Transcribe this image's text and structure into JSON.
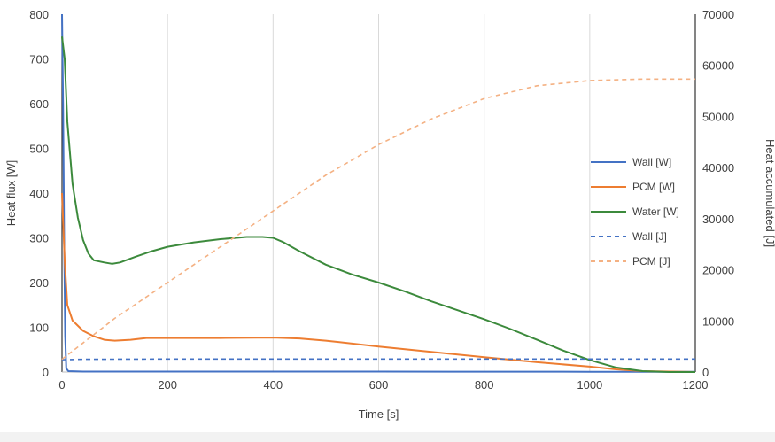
{
  "chart_data": {
    "type": "line",
    "title": "",
    "xlabel": "Time [s]",
    "ylabel": "Heat flux [W]",
    "y2label": "Heat accumulated [J]",
    "xlim": [
      0,
      1200
    ],
    "ylim": [
      0,
      800
    ],
    "y2lim": [
      0,
      70000
    ],
    "x_ticks": [
      "0",
      "200",
      "400",
      "600",
      "800",
      "1000",
      "1200"
    ],
    "y_ticks": [
      "0",
      "100",
      "200",
      "300",
      "400",
      "500",
      "600",
      "700",
      "800"
    ],
    "y2_ticks": [
      "0",
      "10000",
      "20000",
      "30000",
      "40000",
      "50000",
      "60000",
      "70000"
    ],
    "grid": "vertical",
    "legend_position": "right",
    "series": [
      {
        "name": "Wall [W]",
        "axis": "left",
        "style": "solid",
        "color": "#4472C4",
        "points": [
          [
            0,
            800
          ],
          [
            2,
            600
          ],
          [
            4,
            300
          ],
          [
            6,
            80
          ],
          [
            8,
            8
          ],
          [
            12,
            2
          ],
          [
            40,
            1
          ],
          [
            200,
            1
          ],
          [
            600,
            1
          ],
          [
            1000,
            0.5
          ],
          [
            1200,
            0.5
          ]
        ]
      },
      {
        "name": "PCM [W]",
        "axis": "left",
        "style": "solid",
        "color": "#ED7D31",
        "points": [
          [
            0,
            400
          ],
          [
            5,
            250
          ],
          [
            10,
            150
          ],
          [
            20,
            115
          ],
          [
            40,
            92
          ],
          [
            60,
            80
          ],
          [
            80,
            72
          ],
          [
            100,
            70
          ],
          [
            130,
            72
          ],
          [
            160,
            76
          ],
          [
            200,
            76
          ],
          [
            300,
            76
          ],
          [
            400,
            77
          ],
          [
            450,
            75
          ],
          [
            500,
            70
          ],
          [
            600,
            57
          ],
          [
            700,
            45
          ],
          [
            800,
            33
          ],
          [
            900,
            22
          ],
          [
            1000,
            12
          ],
          [
            1050,
            6
          ],
          [
            1100,
            2
          ],
          [
            1150,
            1
          ],
          [
            1200,
            0
          ]
        ]
      },
      {
        "name": "Water [W]",
        "axis": "left",
        "style": "solid",
        "color": "#3C8A3C",
        "points": [
          [
            0,
            750
          ],
          [
            5,
            700
          ],
          [
            10,
            560
          ],
          [
            20,
            420
          ],
          [
            30,
            345
          ],
          [
            40,
            295
          ],
          [
            50,
            265
          ],
          [
            60,
            250
          ],
          [
            80,
            245
          ],
          [
            95,
            242
          ],
          [
            110,
            245
          ],
          [
            140,
            258
          ],
          [
            170,
            270
          ],
          [
            200,
            280
          ],
          [
            250,
            290
          ],
          [
            300,
            297
          ],
          [
            350,
            302
          ],
          [
            380,
            302
          ],
          [
            400,
            300
          ],
          [
            420,
            290
          ],
          [
            450,
            270
          ],
          [
            500,
            240
          ],
          [
            550,
            218
          ],
          [
            600,
            200
          ],
          [
            650,
            180
          ],
          [
            700,
            158
          ],
          [
            750,
            138
          ],
          [
            800,
            118
          ],
          [
            850,
            96
          ],
          [
            900,
            72
          ],
          [
            950,
            48
          ],
          [
            1000,
            27
          ],
          [
            1050,
            10
          ],
          [
            1100,
            2
          ],
          [
            1150,
            0
          ],
          [
            1200,
            0
          ]
        ]
      },
      {
        "name": "Wall [J]",
        "axis": "right",
        "style": "dashed",
        "color": "#4472C4",
        "points": [
          [
            0,
            2400
          ],
          [
            40,
            2500
          ],
          [
            200,
            2550
          ],
          [
            600,
            2550
          ],
          [
            1000,
            2550
          ],
          [
            1200,
            2550
          ]
        ]
      },
      {
        "name": "PCM [J]",
        "axis": "right",
        "style": "dashed",
        "color": "#F4B183",
        "points": [
          [
            0,
            2500
          ],
          [
            50,
            6500
          ],
          [
            100,
            10500
          ],
          [
            200,
            17500
          ],
          [
            300,
            24500
          ],
          [
            400,
            31500
          ],
          [
            500,
            38500
          ],
          [
            600,
            44500
          ],
          [
            700,
            49500
          ],
          [
            800,
            53500
          ],
          [
            900,
            56000
          ],
          [
            1000,
            57000
          ],
          [
            1100,
            57300
          ],
          [
            1200,
            57300
          ]
        ]
      }
    ]
  }
}
